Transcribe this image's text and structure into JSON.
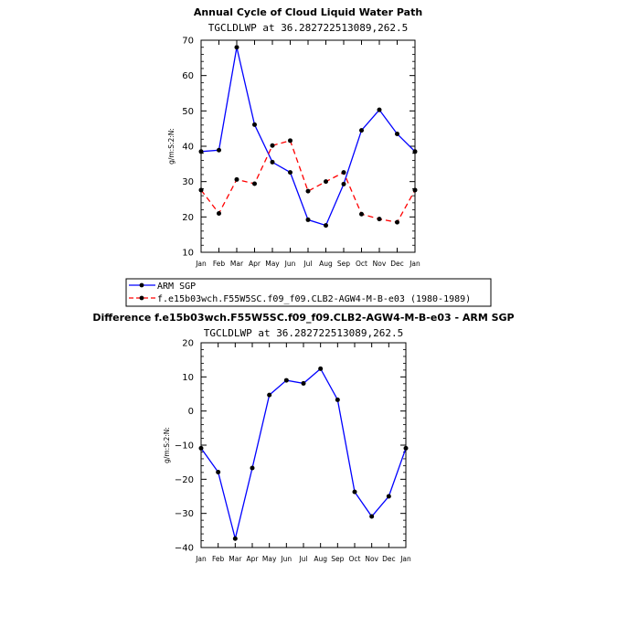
{
  "chart_data": [
    {
      "type": "line",
      "title": "Annual Cycle of Cloud Liquid Water Path",
      "subtitle": "TGCLDLWP at 36.282722513089,262.5",
      "ylabel": "g/m:S:2:N:",
      "xlabel": "",
      "categories": [
        "Jan",
        "Feb",
        "Mar",
        "Apr",
        "May",
        "Jun",
        "Jul",
        "Aug",
        "Sep",
        "Oct",
        "Nov",
        "Dec",
        "Jan"
      ],
      "ylim": [
        10,
        70
      ],
      "yticks": [
        10,
        20,
        30,
        40,
        50,
        60,
        70
      ],
      "grid": false,
      "legend_position": "below",
      "series": [
        {
          "name": "ARM SGP",
          "color": "#0000ff",
          "dash": "solid",
          "values": [
            38.5,
            38.9,
            68.0,
            46.1,
            35.5,
            32.6,
            19.2,
            17.6,
            29.3,
            44.5,
            50.3,
            43.5,
            38.5
          ]
        },
        {
          "name": "f.e15b03wch.F55W5SC.f09_f09.CLB2-AGW4-M-B-e03 (1980-1989)",
          "color": "#ff0000",
          "dash": "dashed",
          "values": [
            27.6,
            21.0,
            30.6,
            29.4,
            40.2,
            41.6,
            27.3,
            30.0,
            32.6,
            20.8,
            19.4,
            18.5,
            27.6
          ]
        }
      ]
    },
    {
      "type": "line",
      "title": "Difference f.e15b03wch.F55W5SC.f09_f09.CLB2-AGW4-M-B-e03 - ARM SGP",
      "subtitle": "TGCLDLWP at 36.282722513089,262.5",
      "ylabel": "g/m:S:2:N:",
      "xlabel": "",
      "categories": [
        "Jan",
        "Feb",
        "Mar",
        "Apr",
        "May",
        "Jun",
        "Jul",
        "Aug",
        "Sep",
        "Oct",
        "Nov",
        "Dec",
        "Jan"
      ],
      "ylim": [
        -40,
        20
      ],
      "yticks": [
        -40,
        -30,
        -20,
        -10,
        0,
        10,
        20
      ],
      "grid": false,
      "series": [
        {
          "color": "#0000ff",
          "dash": "solid",
          "values": [
            -10.9,
            -17.9,
            -37.4,
            -16.7,
            4.7,
            9.0,
            8.1,
            12.4,
            3.3,
            -23.7,
            -30.9,
            -25.0,
            -10.9
          ]
        }
      ]
    }
  ]
}
